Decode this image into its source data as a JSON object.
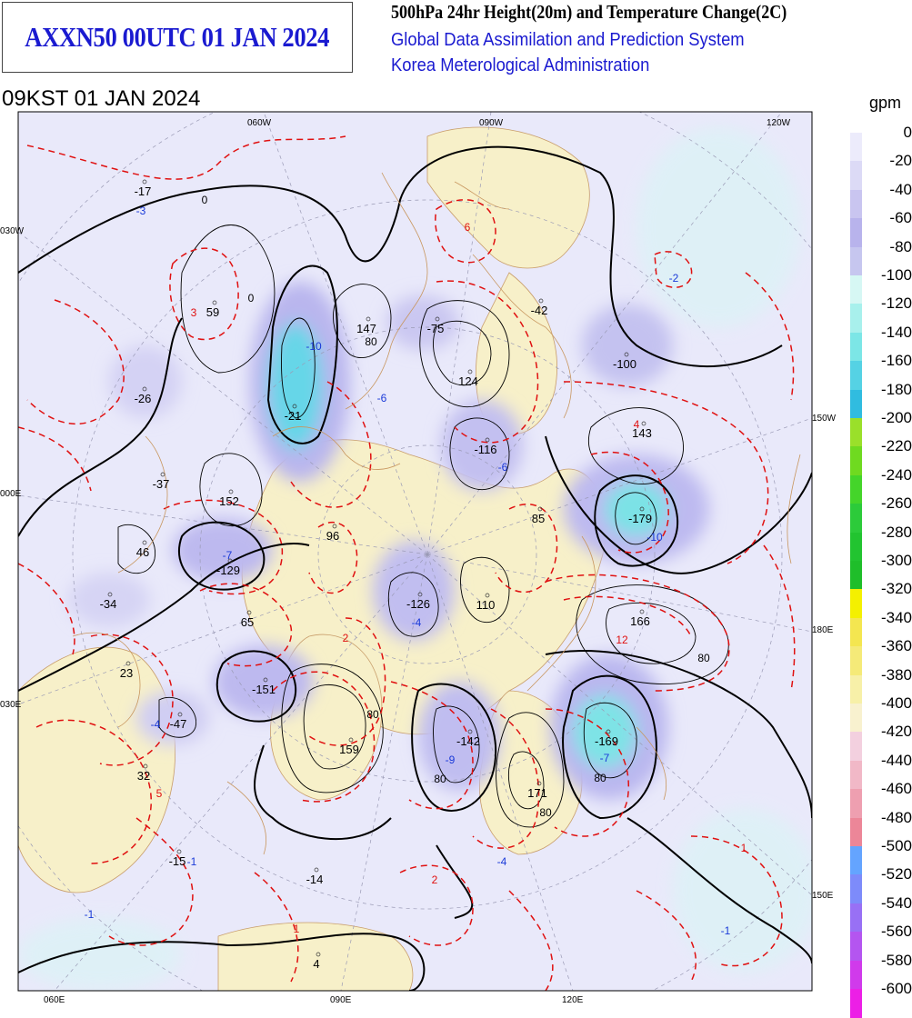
{
  "header": {
    "title": "AXXN50 00UTC 01 JAN 2024",
    "product": "500hPa 24hr Height(20m) and Temperature Change(2C)",
    "system": "Global Data Assimilation and Prediction System",
    "agency": "Korea Meterological Administration",
    "valid_time": "09KST 01 JAN 2024"
  },
  "map": {
    "projection": "polar stereographic, north pole",
    "grid_labels": [
      {
        "id": "lon-060w",
        "text": "060W"
      },
      {
        "id": "lon-090w",
        "text": "090W"
      },
      {
        "id": "lon-120w",
        "text": "120W"
      },
      {
        "id": "lon-030w",
        "text": "030W"
      },
      {
        "id": "lon-150w",
        "text": "150W"
      },
      {
        "id": "lon-000e",
        "text": "000E"
      },
      {
        "id": "lon-180e",
        "text": "180E"
      },
      {
        "id": "lon-030e",
        "text": "030E"
      },
      {
        "id": "lon-150e",
        "text": "150E"
      },
      {
        "id": "lon-060e",
        "text": "060E"
      },
      {
        "id": "lon-090e",
        "text": "090E"
      },
      {
        "id": "lon-120e",
        "text": "120E"
      }
    ],
    "height_change_centers": [
      {
        "v": "-17"
      },
      {
        "v": "59"
      },
      {
        "v": "147"
      },
      {
        "v": "-75"
      },
      {
        "v": "-42"
      },
      {
        "v": "-100"
      },
      {
        "v": "-21"
      },
      {
        "v": "124"
      },
      {
        "v": "-26"
      },
      {
        "v": "143"
      },
      {
        "v": "-116"
      },
      {
        "v": "-37"
      },
      {
        "v": "152"
      },
      {
        "v": "85"
      },
      {
        "v": "-179"
      },
      {
        "v": "96"
      },
      {
        "v": "46"
      },
      {
        "v": "-129"
      },
      {
        "v": "-126"
      },
      {
        "v": "110"
      },
      {
        "v": "166"
      },
      {
        "v": "-34"
      },
      {
        "v": "65"
      },
      {
        "v": "23"
      },
      {
        "v": "-151"
      },
      {
        "v": "159"
      },
      {
        "v": "-142"
      },
      {
        "v": "-169"
      },
      {
        "v": "-47"
      },
      {
        "v": "32"
      },
      {
        "v": "171"
      },
      {
        "v": "-15"
      },
      {
        "v": "-14"
      },
      {
        "v": "4"
      }
    ],
    "temp_change_centers": [
      {
        "v": "-3",
        "sign": "neg"
      },
      {
        "v": "3",
        "sign": "pos"
      },
      {
        "v": "6",
        "sign": "pos"
      },
      {
        "v": "-2",
        "sign": "neg"
      },
      {
        "v": "-10",
        "sign": "neg"
      },
      {
        "v": "4",
        "sign": "pos"
      },
      {
        "v": "-6",
        "sign": "neg"
      },
      {
        "v": "-6",
        "sign": "neg"
      },
      {
        "v": "-10",
        "sign": "neg"
      },
      {
        "v": "-7",
        "sign": "neg"
      },
      {
        "v": "-4",
        "sign": "neg"
      },
      {
        "v": "2",
        "sign": "pos"
      },
      {
        "v": "12",
        "sign": "pos"
      },
      {
        "v": "-4",
        "sign": "neg"
      },
      {
        "v": "-9",
        "sign": "neg"
      },
      {
        "v": "-7",
        "sign": "neg"
      },
      {
        "v": "5",
        "sign": "pos"
      },
      {
        "v": "-1",
        "sign": "neg"
      },
      {
        "v": "-4",
        "sign": "neg"
      },
      {
        "v": "2",
        "sign": "pos"
      },
      {
        "v": "1",
        "sign": "pos"
      },
      {
        "v": "-1",
        "sign": "neg"
      },
      {
        "v": "1",
        "sign": "pos"
      },
      {
        "v": "-1",
        "sign": "neg"
      }
    ],
    "contour_labels": [
      {
        "v": "0"
      },
      {
        "v": "0"
      },
      {
        "v": "80"
      },
      {
        "v": "80"
      },
      {
        "v": "80"
      },
      {
        "v": "80"
      },
      {
        "v": "80"
      },
      {
        "v": "80"
      }
    ]
  },
  "legend": {
    "unit": "gpm",
    "levels": [
      {
        "label": "0",
        "color": "#ecebfb"
      },
      {
        "label": "-20",
        "color": "#dcdaf6"
      },
      {
        "label": "-40",
        "color": "#c9c5f0"
      },
      {
        "label": "-60",
        "color": "#b8b3ec"
      },
      {
        "label": "-80",
        "color": "#c6c6ef"
      },
      {
        "label": "-100",
        "color": "#d6f7f4"
      },
      {
        "label": "-120",
        "color": "#a8f0ec"
      },
      {
        "label": "-140",
        "color": "#7ce6e6"
      },
      {
        "label": "-160",
        "color": "#55d2e4"
      },
      {
        "label": "-180",
        "color": "#30bce0"
      },
      {
        "label": "-200",
        "color": "#9ae02a"
      },
      {
        "label": "-220",
        "color": "#6fda20"
      },
      {
        "label": "-240",
        "color": "#44d52a"
      },
      {
        "label": "-260",
        "color": "#2ccb3a"
      },
      {
        "label": "-280",
        "color": "#22c430"
      },
      {
        "label": "-300",
        "color": "#1fbe2a"
      },
      {
        "label": "-320",
        "color": "#f4f000"
      },
      {
        "label": "-340",
        "color": "#f4e650"
      },
      {
        "label": "-360",
        "color": "#f5ea78"
      },
      {
        "label": "-380",
        "color": "#f7f0a8"
      },
      {
        "label": "-400",
        "color": "#f8f1cf"
      },
      {
        "label": "-420",
        "color": "#f3d0df"
      },
      {
        "label": "-440",
        "color": "#f1b8c7"
      },
      {
        "label": "-460",
        "color": "#ee9fb0"
      },
      {
        "label": "-480",
        "color": "#ec8698"
      },
      {
        "label": "-500",
        "color": "#64a4ff"
      },
      {
        "label": "-520",
        "color": "#7d8bfa"
      },
      {
        "label": "-540",
        "color": "#9870f5"
      },
      {
        "label": "-560",
        "color": "#b455f0"
      },
      {
        "label": "-580",
        "color": "#d03aeb"
      },
      {
        "label": "-600",
        "color": "#ec1fe6"
      }
    ]
  }
}
